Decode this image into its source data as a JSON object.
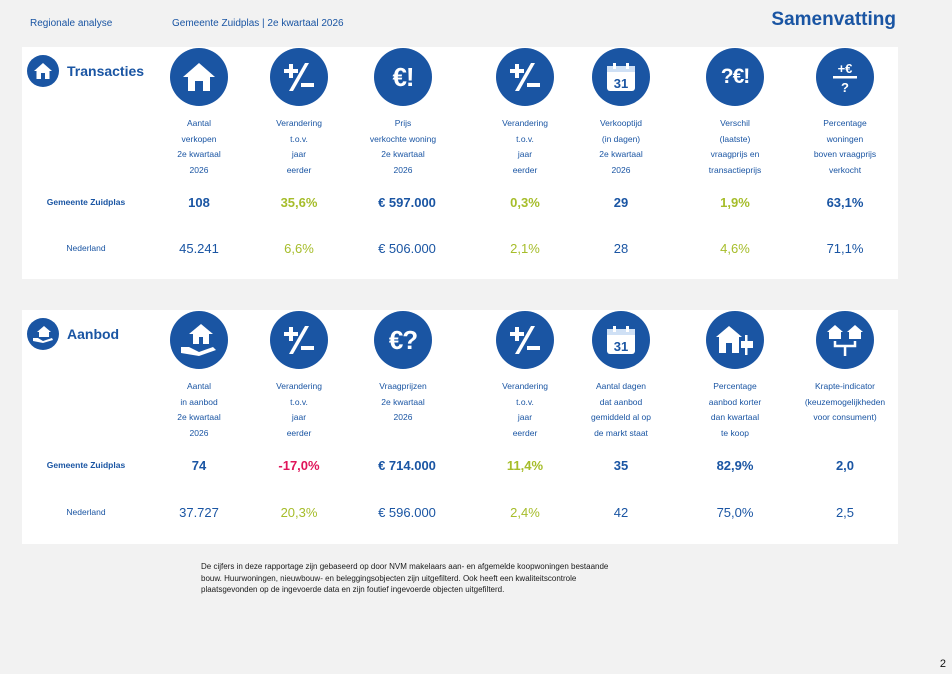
{
  "header": {
    "left": "Regionale analyse",
    "middle": "Gemeente Zuidplas | 2e kwartaal 2026",
    "title": "Samenvatting"
  },
  "transacties": {
    "title": "Transacties",
    "columns": [
      {
        "icon": "house-icon",
        "label": [
          "Aantal",
          "verkopen",
          "2e kwartaal",
          "2026"
        ]
      },
      {
        "icon": "plus-minus-icon",
        "label": [
          "Verandering",
          "t.o.v.",
          "jaar",
          "eerder"
        ]
      },
      {
        "icon": "euro-exclamation-icon",
        "label": [
          "Prijs",
          "verkochte woning",
          "2e kwartaal",
          "2026"
        ]
      },
      {
        "icon": "plus-minus-icon",
        "label": [
          "Verandering",
          "t.o.v.",
          "jaar",
          "eerder"
        ]
      },
      {
        "icon": "calendar-icon",
        "label": [
          "Verkooptijd",
          "(in dagen)",
          "2e kwartaal",
          "2026"
        ]
      },
      {
        "icon": "question-euro-exclamation-icon",
        "label": [
          "Verschil",
          "(laatste)",
          "vraagprijs en",
          "transactieprijs"
        ]
      },
      {
        "icon": "plus-euro-question-icon",
        "label": [
          "Percentage",
          "woningen",
          "boven vraagprijs",
          "verkocht"
        ]
      }
    ],
    "calendar_number": "31",
    "rows": [
      {
        "label": "Gemeente Zuidplas",
        "values": [
          "108",
          "35,6%",
          "€ 597.000",
          "0,3%",
          "29",
          "1,9%",
          "63,1%"
        ]
      },
      {
        "label": "Nederland",
        "values": [
          "45.241",
          "6,6%",
          "€ 506.000",
          "2,1%",
          "28",
          "4,6%",
          "71,1%"
        ]
      }
    ]
  },
  "aanbod": {
    "title": "Aanbod",
    "columns": [
      {
        "icon": "house-in-hand-icon",
        "label": [
          "Aantal",
          "in aanbod",
          "2e kwartaal",
          "2026"
        ]
      },
      {
        "icon": "plus-minus-icon",
        "label": [
          "Verandering",
          "t.o.v.",
          "jaar",
          "eerder"
        ]
      },
      {
        "icon": "euro-question-icon",
        "label": [
          "Vraagprijzen",
          "2e kwartaal",
          "2026"
        ]
      },
      {
        "icon": "plus-minus-icon",
        "label": [
          "Verandering",
          "t.o.v.",
          "jaar",
          "eerder"
        ]
      },
      {
        "icon": "calendar-icon",
        "label": [
          "Aantal dagen",
          "dat aanbod",
          "gemiddeld al op",
          "de markt staat"
        ]
      },
      {
        "icon": "house-for-sale-icon",
        "label": [
          "Percentage",
          "aanbod korter",
          "dan kwartaal",
          "te koop"
        ]
      },
      {
        "icon": "houses-choice-icon",
        "label": [
          "Krapte-indicator",
          "(keuzemogelijkheden",
          "voor consument)"
        ]
      }
    ],
    "calendar_number": "31",
    "rows": [
      {
        "label": "Gemeente Zuidplas",
        "values": [
          "74",
          "-17,0%",
          "€ 714.000",
          "11,4%",
          "35",
          "82,9%",
          "2,0"
        ]
      },
      {
        "label": "Nederland",
        "values": [
          "37.727",
          "20,3%",
          "€ 596.000",
          "2,4%",
          "42",
          "75,0%",
          "2,5"
        ]
      }
    ]
  },
  "note": "De cijfers in deze rapportage zijn gebaseerd op door NVM makelaars aan- en afgemelde koopwoningen bestaande bouw. Huurwoningen, nieuwbouw- en beleggingsobjecten zijn uitgefilterd. Ook heeft een kwaliteitscontrole plaatsgevonden op de ingevoerde data en zijn foutief ingevoerde objecten uitgefilterd.",
  "page_number": "2",
  "colors": {
    "blue": "#1a55a3",
    "green": "#a6bd2a",
    "red": "#e0155a"
  }
}
